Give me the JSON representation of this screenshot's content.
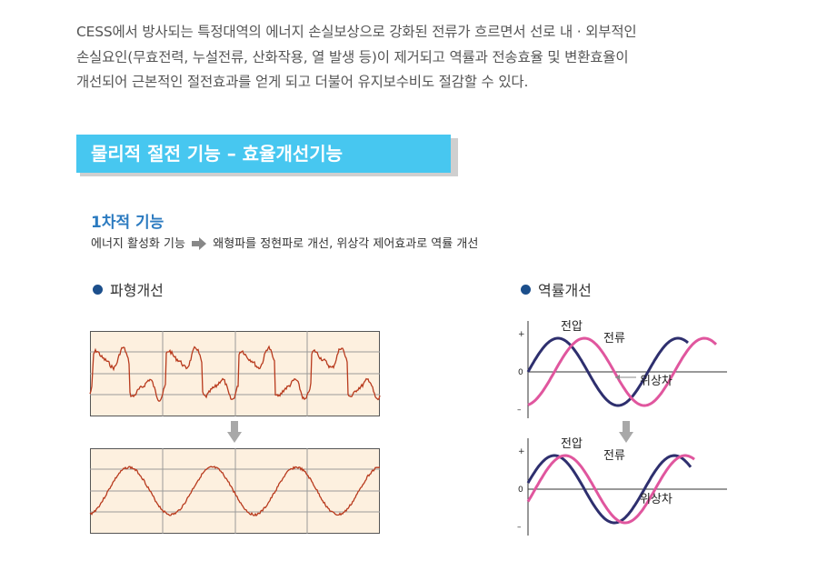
{
  "intro": {
    "lines": [
      "CESS에서 방사되는 특정대역의 에너지 손실보상으로 강화된 전류가 흐르면서 선로 내 · 외부적인",
      "손실요인(무효전력, 누설전류, 산화작용, 열 발생 등)이 제거되고 역률과 전송효율 및 변환효율이",
      "개선되어 근본적인 절전효과를 얻게 되고 더불어 유지보수비도 절감할 수 있다."
    ]
  },
  "banner": {
    "title": "물리적 절전 기능 – 효율개선기능"
  },
  "section1": {
    "title": "1차적 기능",
    "desc_before": "에너지 활성화 기능",
    "desc_after": "왜형파를 정현파로 개선, 위상각 제어효과로 역률 개선"
  },
  "waveform": {
    "heading": "파형개선"
  },
  "power_factor": {
    "heading": "역률개선",
    "top": {
      "voltage_label": "전압",
      "current_label": "전류",
      "phase_label": "위상차"
    },
    "bottom": {
      "voltage_label": "전압",
      "current_label": "전류",
      "phase_label": "위상차"
    },
    "axis": {
      "plus": "+",
      "zero": "0",
      "minus": "–"
    }
  },
  "colors": {
    "banner": "#47c7f0",
    "accent_title": "#2c7bc0",
    "bullet": "#1c4f8c",
    "voltage_wave": "#2e2f6e",
    "current_wave": "#e0569e",
    "waveform_line": "#b83a1d",
    "waveform_bg": "#fdf0df"
  }
}
